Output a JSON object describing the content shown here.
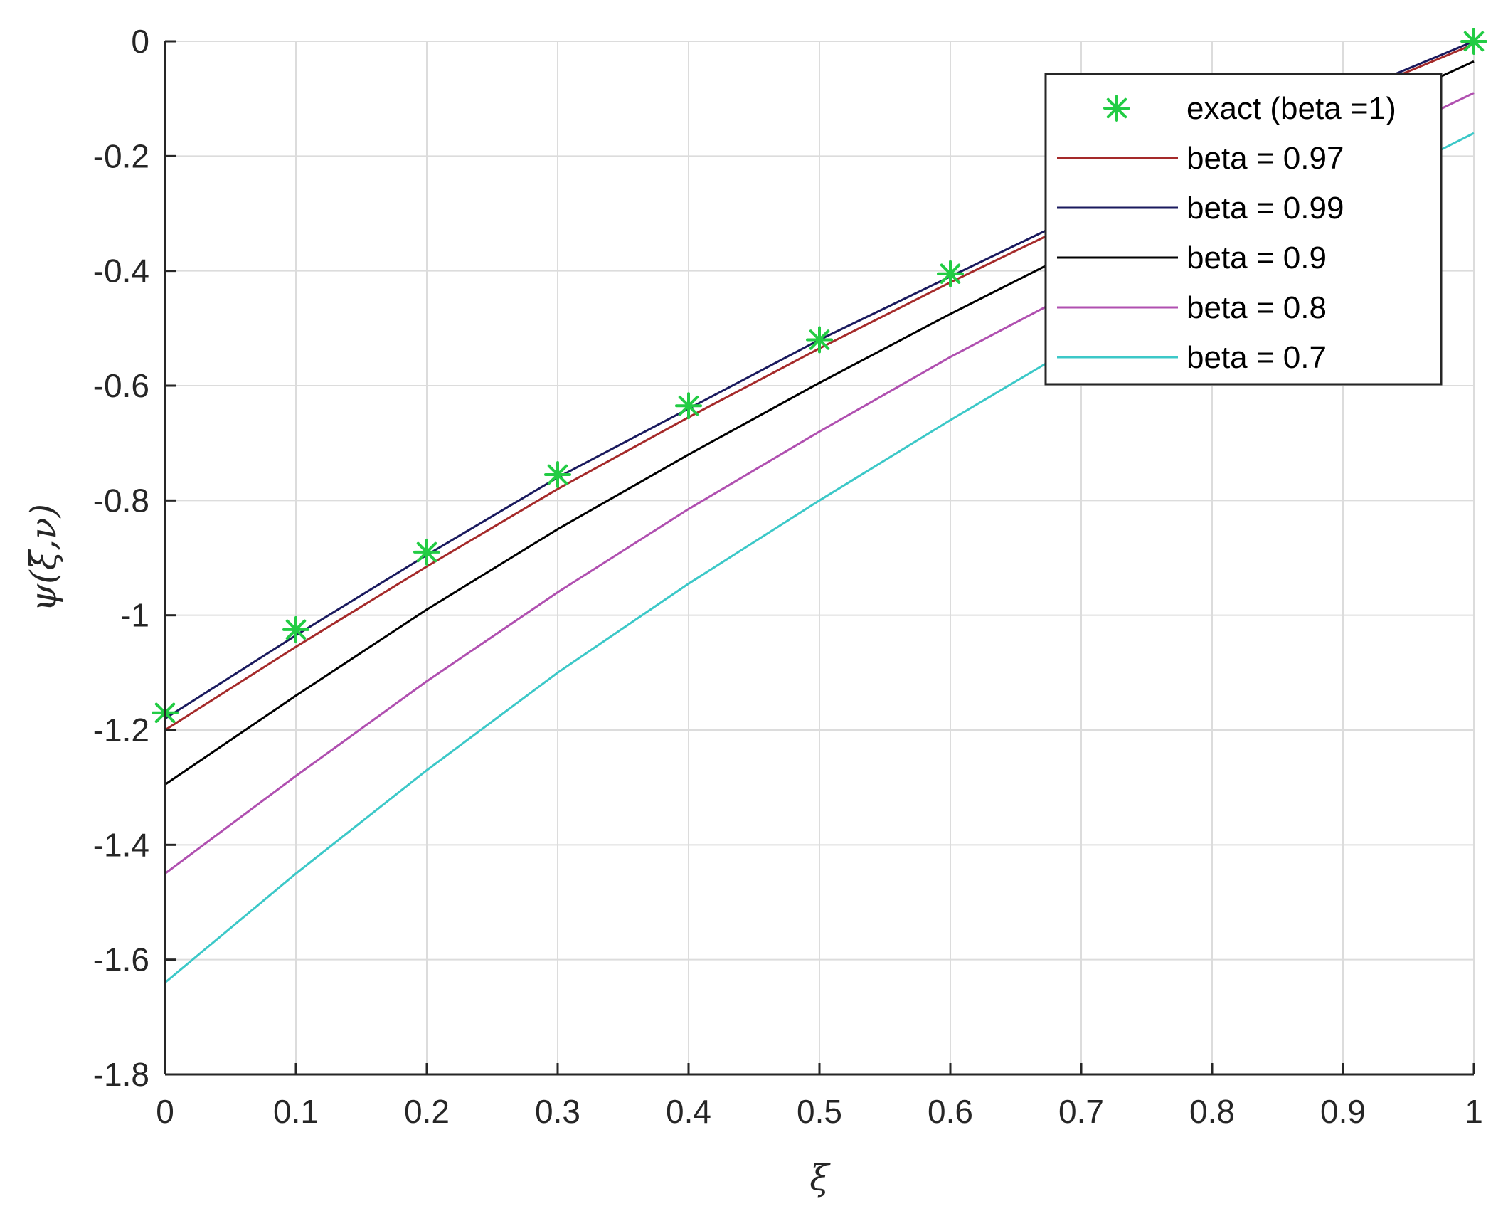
{
  "chart_data": {
    "type": "line",
    "title": "",
    "xlabel": "ξ",
    "ylabel": "ψ(ξ,ν)",
    "xlim": [
      0,
      1
    ],
    "ylim": [
      -1.8,
      0
    ],
    "xticks": [
      0,
      0.1,
      0.2,
      0.3,
      0.4,
      0.5,
      0.6,
      0.7,
      0.8,
      0.9,
      1
    ],
    "yticks": [
      0,
      -0.2,
      -0.4,
      -0.6,
      -0.8,
      -1,
      -1.2,
      -1.4,
      -1.6,
      -1.8
    ],
    "xtick_labels": [
      "0",
      "0.1",
      "0.2",
      "0.3",
      "0.4",
      "0.5",
      "0.6",
      "0.7",
      "0.8",
      "0.9",
      "1"
    ],
    "ytick_labels": [
      "0",
      "-0.2",
      "-0.4",
      "-0.6",
      "-0.8",
      "-1",
      "-1.2",
      "-1.4",
      "-1.6",
      "-1.8"
    ],
    "grid": true,
    "legend_position": "top-right",
    "series": [
      {
        "name": "exact (beta =1)",
        "style": "markers",
        "marker": "asterisk",
        "color": "#22cc44",
        "x": [
          0,
          0.1,
          0.2,
          0.3,
          0.4,
          0.5,
          0.6,
          1.0
        ],
        "y": [
          -1.17,
          -1.025,
          -0.89,
          -0.755,
          -0.635,
          -0.52,
          -0.405,
          0
        ]
      },
      {
        "name": "beta = 0.97",
        "style": "line",
        "color": "#a52a2a",
        "x": [
          0,
          0.1,
          0.2,
          0.3,
          0.4,
          0.5,
          0.6,
          0.7,
          0.8,
          0.9,
          1.0
        ],
        "y": [
          -1.2,
          -1.055,
          -0.915,
          -0.78,
          -0.655,
          -0.535,
          -0.42,
          -0.31,
          -0.205,
          -0.1,
          -0.005
        ]
      },
      {
        "name": "beta = 0.99",
        "style": "line",
        "color": "#1a1a5e",
        "x": [
          0,
          0.1,
          0.2,
          0.3,
          0.4,
          0.5,
          0.6,
          0.7,
          0.8,
          0.9,
          1.0
        ],
        "y": [
          -1.18,
          -1.035,
          -0.895,
          -0.76,
          -0.64,
          -0.52,
          -0.41,
          -0.3,
          -0.195,
          -0.095,
          0
        ]
      },
      {
        "name": "beta = 0.9",
        "style": "line",
        "color": "#000000",
        "x": [
          0,
          0.1,
          0.2,
          0.3,
          0.4,
          0.5,
          0.6,
          0.7,
          0.8,
          0.9,
          1.0
        ],
        "y": [
          -1.295,
          -1.14,
          -0.99,
          -0.85,
          -0.72,
          -0.595,
          -0.475,
          -0.36,
          -0.25,
          -0.14,
          -0.035
        ]
      },
      {
        "name": "beta = 0.8",
        "style": "line",
        "color": "#b050b0",
        "x": [
          0,
          0.1,
          0.2,
          0.3,
          0.4,
          0.5,
          0.6,
          0.7,
          0.8,
          0.9,
          1.0
        ],
        "y": [
          -1.45,
          -1.28,
          -1.115,
          -0.96,
          -0.815,
          -0.68,
          -0.55,
          -0.43,
          -0.31,
          -0.2,
          -0.09
        ]
      },
      {
        "name": "beta = 0.7",
        "style": "line",
        "color": "#3cc8c8",
        "x": [
          0,
          0.1,
          0.2,
          0.3,
          0.4,
          0.5,
          0.6,
          0.7,
          0.8,
          0.9,
          1.0
        ],
        "y": [
          -1.64,
          -1.45,
          -1.27,
          -1.1,
          -0.945,
          -0.8,
          -0.66,
          -0.525,
          -0.395,
          -0.275,
          -0.16
        ]
      }
    ]
  }
}
